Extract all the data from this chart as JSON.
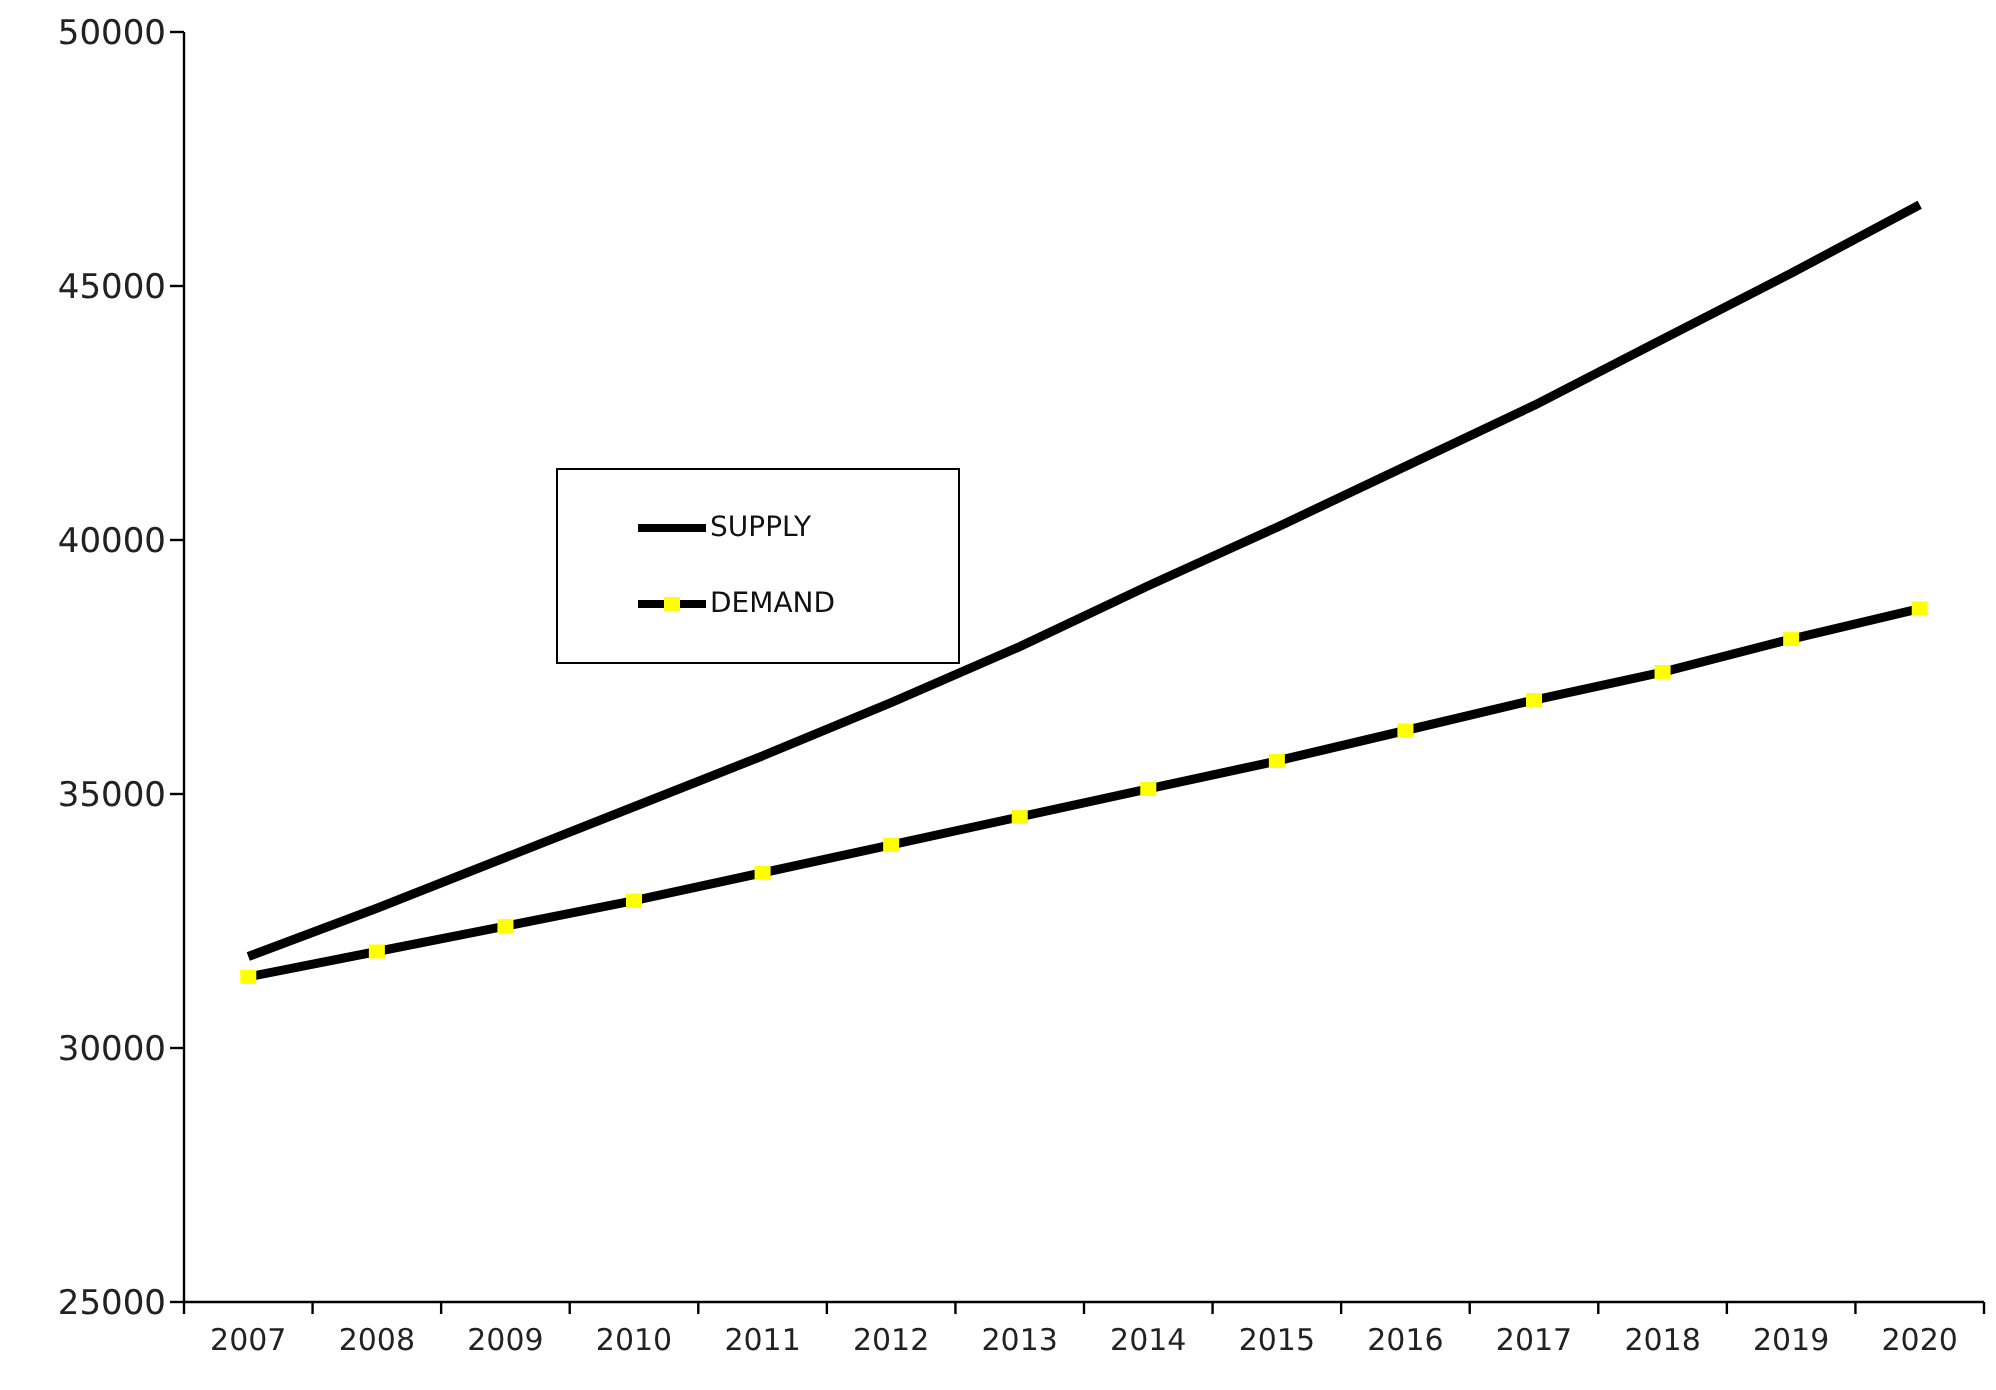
{
  "chart_data": {
    "type": "line",
    "categories": [
      "2007",
      "2008",
      "2009",
      "2010",
      "2011",
      "2012",
      "2013",
      "2014",
      "2015",
      "2016",
      "2017",
      "2018",
      "2019",
      "2020"
    ],
    "series": [
      {
        "name": "SUPPLY",
        "color": "#000000",
        "values": [
          31800,
          32750,
          33750,
          34750,
          35750,
          36800,
          37900,
          39100,
          40250,
          41450,
          42650,
          43950,
          45250,
          46600
        ]
      },
      {
        "name": "DEMAND",
        "color": "#000000",
        "marker": "square",
        "colors": [
          "#ffff00",
          "#ffff00",
          "#ffff00",
          "#ffff00",
          "#ffff00",
          "#ffff00",
          "#ffff00",
          "#ffff00",
          "#ffff00",
          "#ffff00",
          "#ffff00",
          "#ffff00",
          "#ffff00",
          "#ffff00"
        ],
        "values": [
          31400,
          31900,
          32400,
          32900,
          33450,
          34000,
          34550,
          35100,
          35650,
          36250,
          36850,
          37400,
          38050,
          38650
        ]
      }
    ],
    "ylim": [
      25000,
      50000
    ],
    "yticks": [
      25000,
      30000,
      35000,
      40000,
      45000,
      50000
    ],
    "grid": false,
    "legend": "left",
    "marker": "none"
  }
}
